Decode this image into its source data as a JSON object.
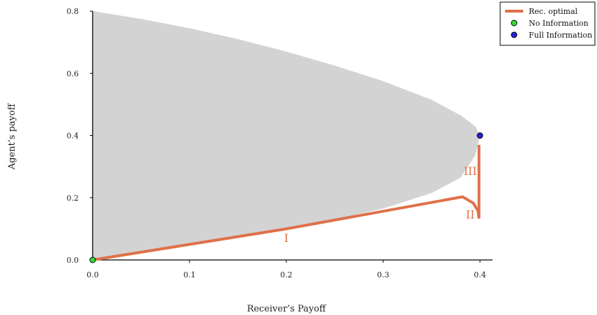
{
  "chart_data": {
    "type": "area",
    "title": "",
    "xlabel": "Receiver’s Payoff",
    "ylabel": "Agent’s payoff",
    "xlim": [
      0.0,
      0.4
    ],
    "ylim": [
      0.0,
      0.8
    ],
    "xticks": [
      "0.0",
      "0.1",
      "0.2",
      "0.3",
      "0.4"
    ],
    "yticks": [
      "0.0",
      "0.2",
      "0.4",
      "0.6",
      "0.8"
    ],
    "grid": false,
    "legend_position": "top-right",
    "feasible_region": {
      "color": "#d3d3d3",
      "upper": [
        [
          0.0,
          0.8
        ],
        [
          0.05,
          0.775
        ],
        [
          0.1,
          0.745
        ],
        [
          0.15,
          0.71
        ],
        [
          0.2,
          0.67
        ],
        [
          0.25,
          0.625
        ],
        [
          0.3,
          0.575
        ],
        [
          0.35,
          0.515
        ],
        [
          0.38,
          0.465
        ],
        [
          0.395,
          0.43
        ],
        [
          0.4,
          0.4
        ]
      ],
      "lower": [
        [
          0.0,
          0.0
        ],
        [
          0.05,
          0.025
        ],
        [
          0.1,
          0.05
        ],
        [
          0.15,
          0.075
        ],
        [
          0.2,
          0.1
        ],
        [
          0.25,
          0.13
        ],
        [
          0.3,
          0.165
        ],
        [
          0.35,
          0.215
        ],
        [
          0.38,
          0.265
        ],
        [
          0.395,
          0.335
        ],
        [
          0.4,
          0.4
        ]
      ]
    },
    "series": [
      {
        "name": "Rec. optimal",
        "color": "#e07048",
        "x": [
          0.0,
          0.2,
          0.382,
          0.393,
          0.398,
          0.399
        ],
        "y": [
          0.0,
          0.1,
          0.203,
          0.183,
          0.158,
          0.133
        ]
      },
      {
        "name": "Rec. optimal (III)",
        "color": "#e07048",
        "x": [
          0.399,
          0.399
        ],
        "y": [
          0.133,
          0.37
        ]
      }
    ],
    "points": [
      {
        "name": "No Information",
        "x": 0.0,
        "y": 0.0,
        "color": "#33dd33"
      },
      {
        "name": "Full Information",
        "x": 0.4,
        "y": 0.4,
        "color": "#2222dd"
      }
    ],
    "annotations": [
      {
        "text": "I",
        "x": 0.2,
        "y": 0.07,
        "color": "#e07048"
      },
      {
        "text": "II",
        "x": 0.39,
        "y": 0.145,
        "color": "#e07048"
      },
      {
        "text": "III",
        "x": 0.39,
        "y": 0.285,
        "color": "#e07048"
      }
    ],
    "legend": [
      {
        "label": "Rec. optimal",
        "kind": "line",
        "color": "#e07048"
      },
      {
        "label": "No Information",
        "kind": "marker",
        "color": "#33dd33"
      },
      {
        "label": "Full Information",
        "kind": "marker",
        "color": "#2222dd"
      }
    ]
  }
}
